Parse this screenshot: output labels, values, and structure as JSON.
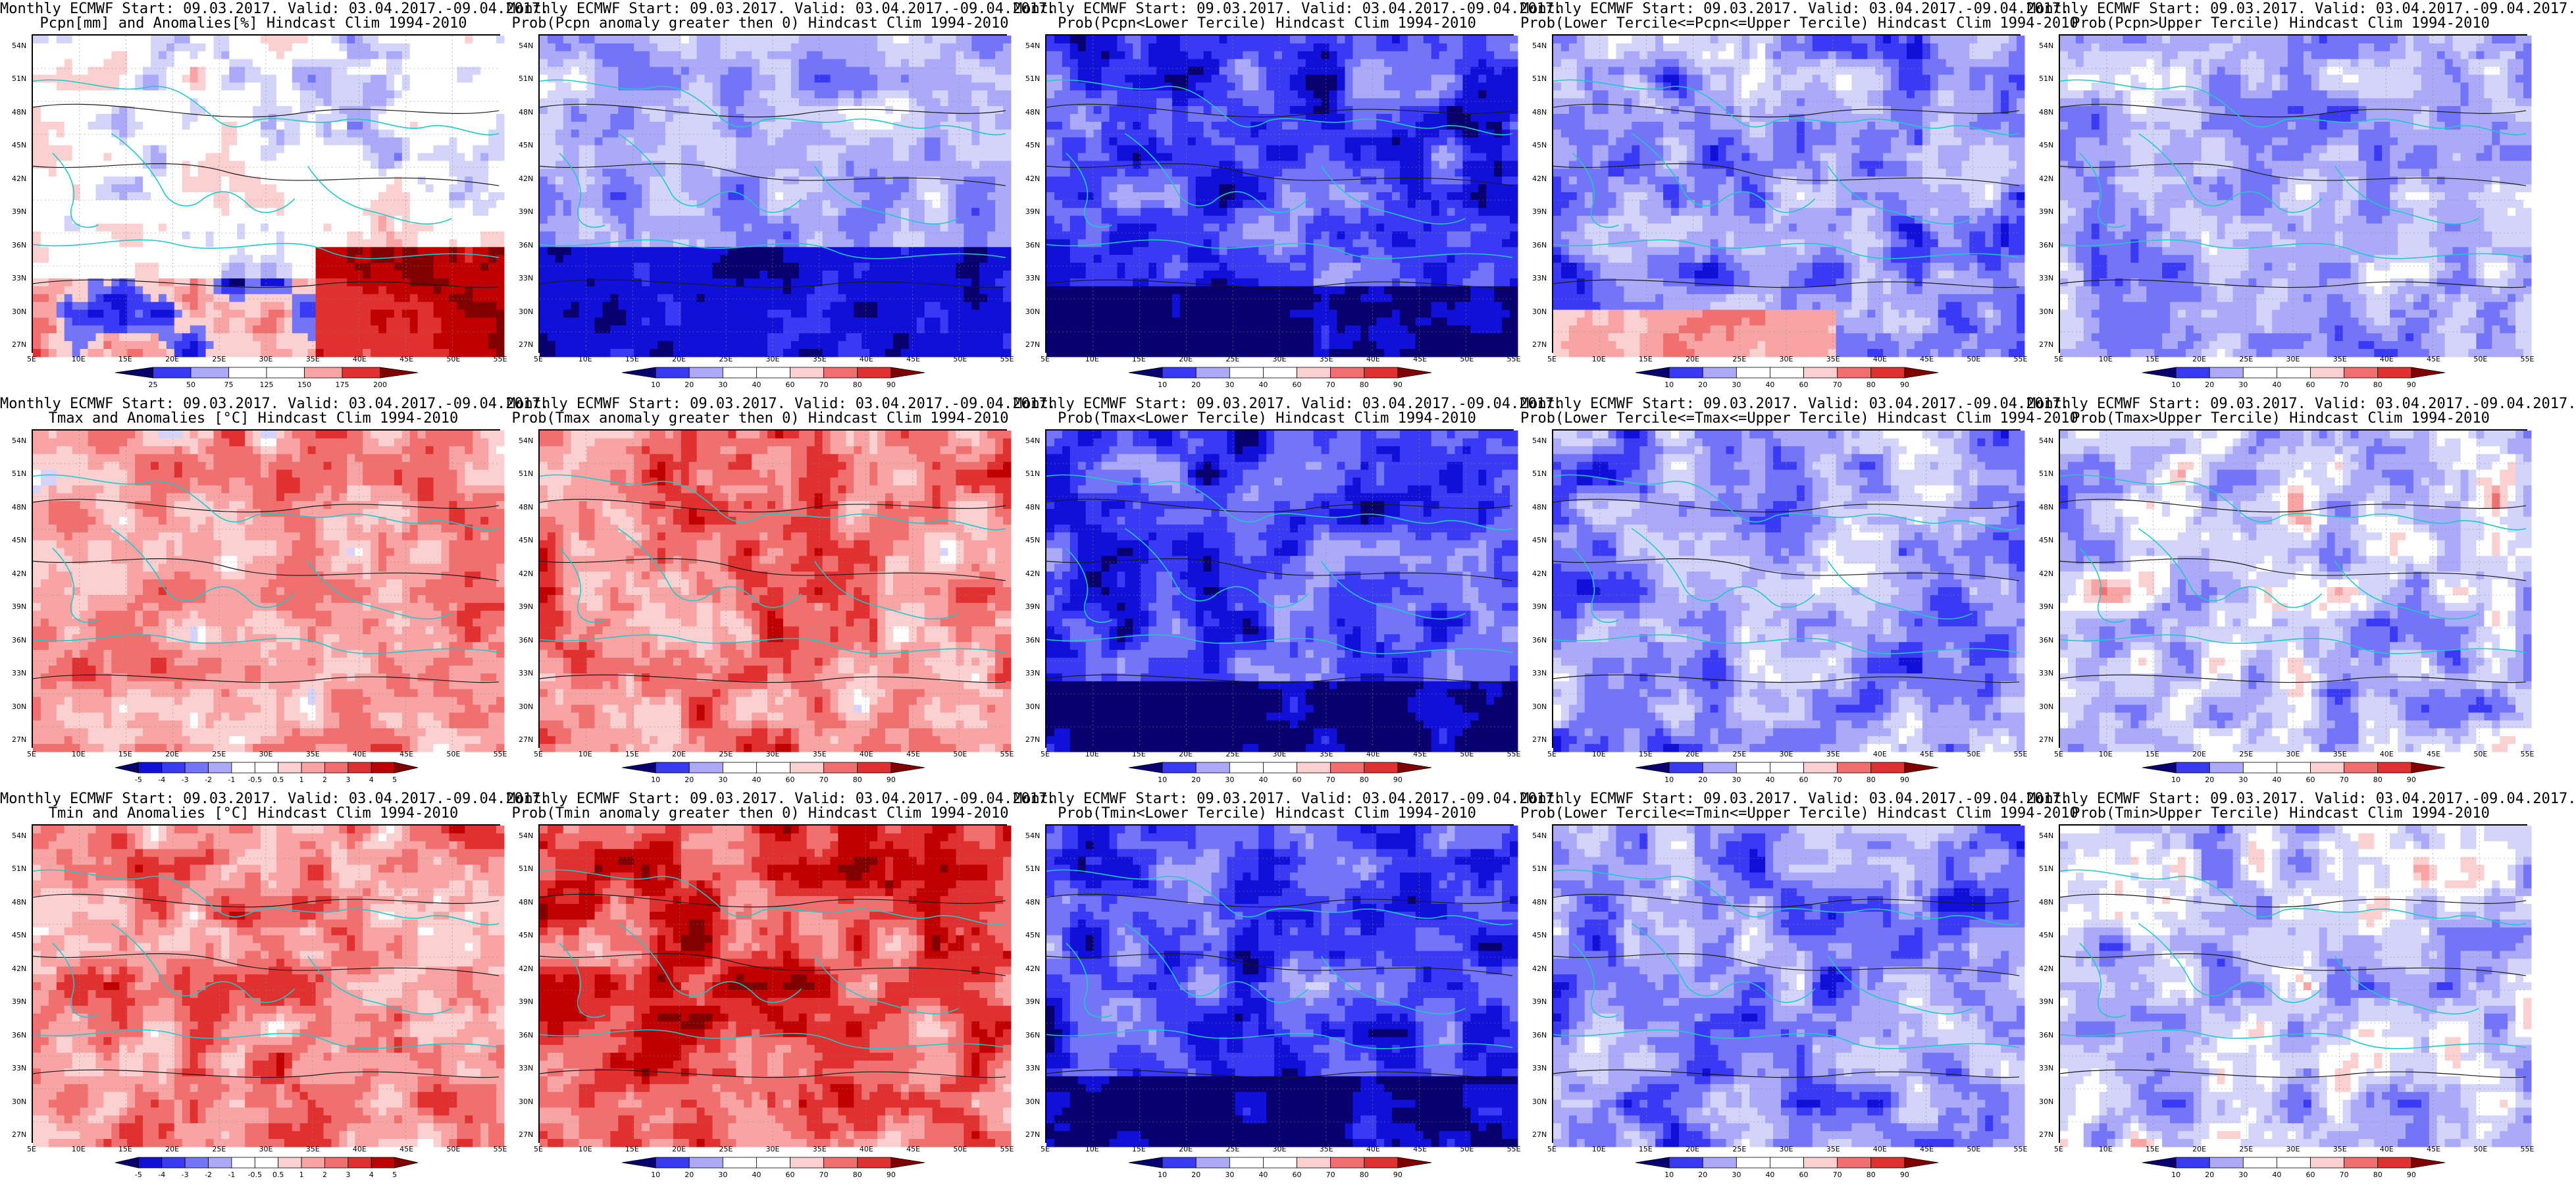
{
  "colors": {
    "coast": "#20c8c8",
    "contour": "#1a1a1a",
    "blue_scale": [
      "#08006e",
      "#1010d8",
      "#3a3af4",
      "#7474f8",
      "#aaaaf8",
      "#d4d4fb",
      "#ffffff"
    ],
    "red_scale": [
      "#ffffff",
      "#fbd0d0",
      "#f8a4a4",
      "#f07070",
      "#e03030",
      "#c00000",
      "#800000"
    ]
  },
  "axes": {
    "y_ticks": [
      "54N",
      "51N",
      "48N",
      "45N",
      "42N",
      "39N",
      "36N",
      "33N",
      "30N",
      "27N"
    ],
    "x_ticks": [
      "5E",
      "10E",
      "15E",
      "20E",
      "25E",
      "30E",
      "35E",
      "40E",
      "45E",
      "50E",
      "55E"
    ]
  },
  "panels": [
    {
      "line1": "Monthly ECMWF Start: 09.03.2017. Valid: 03.04.2017.-09.04.2017.",
      "line2": "Pcpn[mm] and Anomalies[%]",
      "line2b": "Hindcast Clim 1994-2010",
      "scheme": "pcpn-anom",
      "cbar": [
        "25",
        "50",
        "75",
        "125",
        "150",
        "175",
        "200"
      ]
    },
    {
      "line1": "Monthly ECMWF Start: 09.03.2017. Valid: 03.04.2017.-09.04.2017.",
      "line2": "Prob(Pcpn anomaly greater then 0) Hindcast Clim 1994-2010",
      "line2b": "",
      "scheme": "mostly-blue-south",
      "cbar": [
        "10",
        "20",
        "30",
        "40",
        "60",
        "70",
        "80",
        "90"
      ]
    },
    {
      "line1": "Monthly ECMWF Start: 09.03.2017. Valid: 03.04.2017.-09.04.2017.",
      "line2": "Prob(Pcpn<Lower Tercile) Hindcast Clim 1994-2010",
      "line2b": "",
      "scheme": "deep-blue",
      "cbar": [
        "10",
        "20",
        "30",
        "40",
        "60",
        "70",
        "80",
        "90"
      ]
    },
    {
      "line1": "Monthly ECMWF Start: 09.03.2017. Valid: 03.04.2017.-09.04.2017.",
      "line2": "Prob(Lower Tercile<=Pcpn<=Upper Tercile) Hindcast Clim 1994-2010",
      "line2b": "",
      "scheme": "mixed-red-south",
      "cbar": [
        "10",
        "20",
        "30",
        "40",
        "60",
        "70",
        "80",
        "90"
      ]
    },
    {
      "line1": "Monthly ECMWF Start: 09.03.2017. Valid: 03.04.2017.-09.04.2017.",
      "line2": "Prob(Pcpn>Upper Tercile) Hindcast Clim 1994-2010",
      "line2b": "",
      "scheme": "light-blue",
      "cbar": [
        "10",
        "20",
        "30",
        "40",
        "60",
        "70",
        "80",
        "90"
      ]
    },
    {
      "line1": "Monthly ECMWF Start: 09.03.2017. Valid: 03.04.2017.-09.04.2017.",
      "line2": "Tmax and Anomalies [°C] Hindcast Clim 1994-2010",
      "line2b": "",
      "scheme": "light-red",
      "cbar": [
        "-5",
        "-4",
        "-3",
        "-2",
        "-1",
        "-0.5",
        "0.5",
        "1",
        "2",
        "3",
        "4",
        "5"
      ]
    },
    {
      "line1": "Monthly ECMWF Start: 09.03.2017. Valid: 03.04.2017.-09.04.2017.",
      "line2": "Prob(Tmax anomaly greater then 0) Hindcast Clim 1994-2010",
      "line2b": "",
      "scheme": "red",
      "cbar": [
        "10",
        "20",
        "30",
        "40",
        "60",
        "70",
        "80",
        "90"
      ]
    },
    {
      "line1": "Monthly ECMWF Start: 09.03.2017. Valid: 03.04.2017.-09.04.2017.",
      "line2": "Prob(Tmax<Lower Tercile) Hindcast Clim 1994-2010",
      "line2b": "",
      "scheme": "deep-blue",
      "cbar": [
        "10",
        "20",
        "30",
        "40",
        "60",
        "70",
        "80",
        "90"
      ]
    },
    {
      "line1": "Monthly ECMWF Start: 09.03.2017. Valid: 03.04.2017.-09.04.2017.",
      "line2": "Prob(Lower Tercile<=Tmax<=Upper Tercile) Hindcast Clim 1994-2010",
      "line2b": "",
      "scheme": "mid-blue",
      "cbar": [
        "10",
        "20",
        "30",
        "40",
        "60",
        "70",
        "80",
        "90"
      ]
    },
    {
      "line1": "Monthly ECMWF Start: 09.03.2017. Valid: 03.04.2017.-09.04.2017.",
      "line2": "Prob(Tmax>Upper Tercile) Hindcast Clim 1994-2010",
      "line2b": "",
      "scheme": "light-mixed",
      "cbar": [
        "10",
        "20",
        "30",
        "40",
        "60",
        "70",
        "80",
        "90"
      ]
    },
    {
      "line1": "Monthly ECMWF Start: 09.03.2017. Valid: 03.04.2017.-09.04.2017.",
      "line2": "Tmin and Anomalies [°C] Hindcast Clim 1994-2010",
      "line2b": "",
      "scheme": "red",
      "cbar": [
        "-5",
        "-4",
        "-3",
        "-2",
        "-1",
        "-0.5",
        "0.5",
        "1",
        "2",
        "3",
        "4",
        "5"
      ]
    },
    {
      "line1": "Monthly ECMWF Start: 09.03.2017. Valid: 03.04.2017.-09.04.2017.",
      "line2": "Prob(Tmin anomaly greater then 0) Hindcast Clim 1994-2010",
      "line2b": "",
      "scheme": "strong-red",
      "cbar": [
        "10",
        "20",
        "30",
        "40",
        "60",
        "70",
        "80",
        "90"
      ]
    },
    {
      "line1": "Monthly ECMWF Start: 09.03.2017. Valid: 03.04.2017.-09.04.2017.",
      "line2": "Prob(Tmin<Lower Tercile) Hindcast Clim 1994-2010",
      "line2b": "",
      "scheme": "deep-blue",
      "cbar": [
        "10",
        "20",
        "30",
        "40",
        "60",
        "70",
        "80",
        "90"
      ]
    },
    {
      "line1": "Monthly ECMWF Start: 09.03.2017. Valid: 03.04.2017.-09.04.2017.",
      "line2": "Prob(Lower Tercile<=Tmin<=Upper Tercile) Hindcast Clim 1994-2010",
      "line2b": "",
      "scheme": "mid-blue",
      "cbar": [
        "10",
        "20",
        "30",
        "40",
        "60",
        "70",
        "80",
        "90"
      ]
    },
    {
      "line1": "Monthly ECMWF Start: 09.03.2017. Valid: 03.04.2017.-09.04.2017.",
      "line2": "Prob(Tmin>Upper Tercile) Hindcast Clim 1994-2010",
      "line2b": "",
      "scheme": "light-mixed",
      "cbar": [
        "10",
        "20",
        "30",
        "40",
        "60",
        "70",
        "80",
        "90"
      ]
    }
  ]
}
